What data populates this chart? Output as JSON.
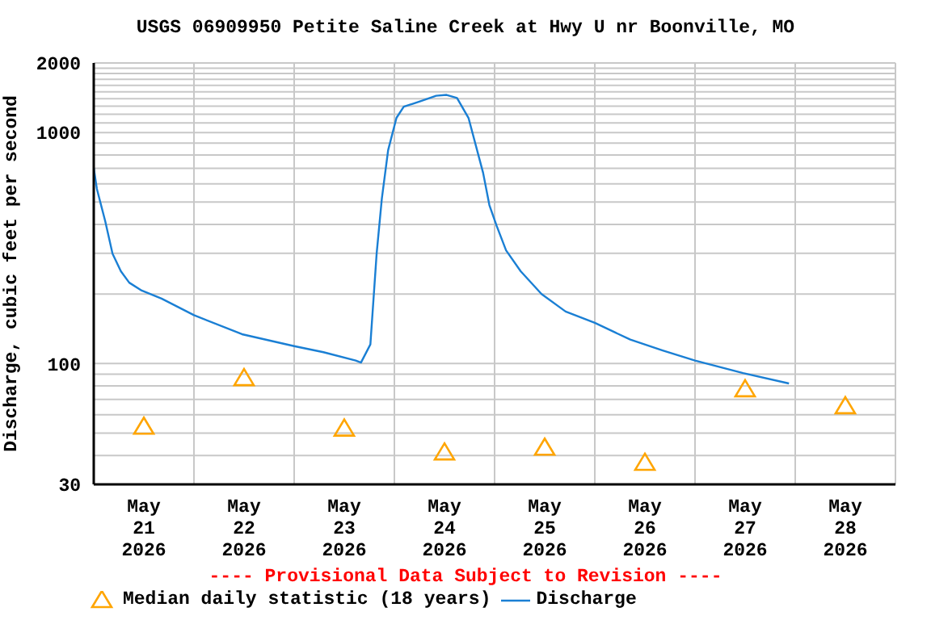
{
  "chart_data": {
    "type": "line",
    "title": "USGS 06909950 Petite Saline Creek at Hwy U nr Boonville, MO",
    "ylabel": "Discharge, cubic feet per second",
    "annotations": [
      "---- Provisional Data Subject to Revision ----"
    ],
    "log": "y",
    "grid": true,
    "legend": "bottom",
    "xlim": [
      "2026-05-21T00:00",
      "2026-05-29T00:00"
    ],
    "xticks": [
      {
        "value": "2026-05-21T00:00",
        "label": null
      },
      {
        "value": "2026-05-21T12:00",
        "label": "May 21 2026"
      },
      {
        "value": "2026-05-22T00:00",
        "label": null
      },
      {
        "value": "2026-05-22T12:00",
        "label": "May 22 2026"
      },
      {
        "value": "2026-05-23T00:00",
        "label": null
      },
      {
        "value": "2026-05-23T12:00",
        "label": "May 23 2026"
      },
      {
        "value": "2026-05-24T00:00",
        "label": null
      },
      {
        "value": "2026-05-24T12:00",
        "label": "May 24 2026"
      },
      {
        "value": "2026-05-25T00:00",
        "label": null
      },
      {
        "value": "2026-05-25T12:00",
        "label": "May 25 2026"
      },
      {
        "value": "2026-05-26T00:00",
        "label": null
      },
      {
        "value": "2026-05-26T12:00",
        "label": "May 26 2026"
      },
      {
        "value": "2026-05-27T00:00",
        "label": null
      },
      {
        "value": "2026-05-27T12:00",
        "label": "May 27 2026"
      },
      {
        "value": "2026-05-28T00:00",
        "label": null
      },
      {
        "value": "2026-05-28T12:00",
        "label": "May 28 2026"
      },
      {
        "value": "2026-05-29T00:00",
        "label": null
      }
    ],
    "ylim": [
      30,
      2000
    ],
    "yticks": [
      30,
      {
        "value": 40,
        "label": null
      },
      {
        "value": 50,
        "label": null
      },
      {
        "value": 60,
        "label": null
      },
      {
        "value": 70,
        "label": null
      },
      {
        "value": 80,
        "label": null
      },
      {
        "value": 90,
        "label": null
      },
      100,
      {
        "value": 200,
        "label": null
      },
      {
        "value": 300,
        "label": null
      },
      {
        "value": 400,
        "label": null
      },
      {
        "value": 500,
        "label": null
      },
      {
        "value": 600,
        "label": null
      },
      {
        "value": 700,
        "label": null
      },
      {
        "value": 800,
        "label": null
      },
      {
        "value": 900,
        "label": null
      },
      1000,
      {
        "value": 1100,
        "label": null
      },
      {
        "value": 1200,
        "label": null
      },
      {
        "value": 1300,
        "label": null
      },
      {
        "value": 1400,
        "label": null
      },
      {
        "value": 1500,
        "label": null
      },
      {
        "value": 1600,
        "label": null
      },
      {
        "value": 1700,
        "label": null
      },
      {
        "value": 1800,
        "label": null
      },
      {
        "value": 1900,
        "label": null
      },
      2000
    ],
    "series": [
      {
        "name": "Median daily statistic (18 years)",
        "type": "scatter",
        "marker": "triangle",
        "color": "#ffa500",
        "x": [
          "2026-05-21T12:00",
          "2026-05-22T12:00",
          "2026-05-23T12:00",
          "2026-05-24T12:00",
          "2026-05-25T12:00",
          "2026-05-26T12:00",
          "2026-05-27T12:00",
          "2026-05-28T12:00"
        ],
        "values": [
          53,
          86,
          52,
          41,
          43,
          37,
          77,
          65
        ]
      },
      {
        "name": "Discharge",
        "type": "line",
        "marker": "none",
        "color": "#1a7fd4",
        "x": [
          "2026-05-21T00:00",
          "2026-05-21T00:45",
          "2026-05-21T02:45",
          "2026-05-21T04:30",
          "2026-05-21T06:30",
          "2026-05-21T08:30",
          "2026-05-21T11:30",
          "2026-05-21T16:15",
          "2026-05-22T00:00",
          "2026-05-22T11:30",
          "2026-05-23T00:00",
          "2026-05-23T07:00",
          "2026-05-23T14:45",
          "2026-05-23T16:00",
          "2026-05-23T18:15",
          "2026-05-23T19:45",
          "2026-05-23T21:00",
          "2026-05-23T22:30",
          "2026-05-24T00:30",
          "2026-05-24T02:15",
          "2026-05-24T06:15",
          "2026-05-24T10:00",
          "2026-05-24T12:30",
          "2026-05-24T15:00",
          "2026-05-24T17:45",
          "2026-05-24T21:15",
          "2026-05-24T22:45",
          "2026-05-25T00:30",
          "2026-05-25T02:45",
          "2026-05-25T06:15",
          "2026-05-25T11:15",
          "2026-05-25T17:00",
          "2026-05-26T00:00",
          "2026-05-26T08:30",
          "2026-05-26T16:15",
          "2026-05-27T00:00",
          "2026-05-27T11:30",
          "2026-05-27T22:30"
        ],
        "values": [
          702,
          570,
          413,
          299,
          251,
          224,
          207,
          191,
          162,
          134,
          119,
          112,
          103,
          101,
          121,
          299,
          518,
          838,
          1157,
          1294,
          1366,
          1442,
          1455,
          1410,
          1157,
          669,
          485,
          394,
          309,
          251,
          200,
          168,
          150,
          127,
          114,
          103,
          91,
          82
        ]
      }
    ]
  }
}
